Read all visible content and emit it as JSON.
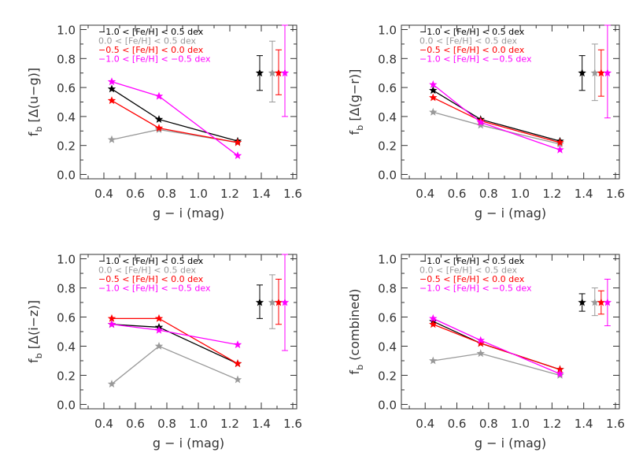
{
  "chart_data": [
    {
      "type": "line",
      "xlabel": "g − i (mag)",
      "ylabel": "f_b [Δ(u−g)]",
      "ylabel_main": "f",
      "ylabel_sub": "b",
      "ylabel_rest": " [Δ(u−g)]",
      "xlim": [
        0.25,
        1.625
      ],
      "ylim": [
        -0.03,
        1.03
      ],
      "xticks": [
        "0.4",
        "0.6",
        "0.8",
        "1.0",
        "1.2",
        "1.4",
        "1.6"
      ],
      "yticks": [
        "0.0",
        "0.2",
        "0.4",
        "0.6",
        "0.8",
        "1.0"
      ],
      "legend_placement": "top-left",
      "x": [
        0.45,
        0.75,
        1.25
      ],
      "series": [
        {
          "name": "−1.0 < [Fe/H] < 0.5 dex",
          "color": "#000000",
          "values": [
            0.59,
            0.38,
            0.23
          ],
          "err_x": 1.39,
          "err_y": 0.7,
          "err_range": [
            0.58,
            0.82
          ]
        },
        {
          "name": "0.0 < [Fe/H] < 0.5 dex",
          "color": "#999999",
          "values": [
            0.24,
            0.31,
            0.22
          ],
          "err_x": 1.47,
          "err_y": 0.7,
          "err_range": [
            0.5,
            0.92
          ]
        },
        {
          "name": "−0.5 < [Fe/H] < 0.0 dex",
          "color": "#ff0000",
          "values": [
            0.51,
            0.32,
            0.22
          ],
          "err_x": 1.51,
          "err_y": 0.7,
          "err_range": [
            0.55,
            0.86
          ]
        },
        {
          "name": "−1.0 < [Fe/H] < −0.5 dex",
          "color": "#ff00ff",
          "values": [
            0.64,
            0.54,
            0.13
          ],
          "err_x": 1.55,
          "err_y": 0.7,
          "err_range": [
            0.4,
            1.03
          ]
        }
      ]
    },
    {
      "type": "line",
      "xlabel": "g − i (mag)",
      "ylabel": "f_b [Δ(g−r)]",
      "ylabel_main": "f",
      "ylabel_sub": "b",
      "ylabel_rest": " [Δ(g−r)]",
      "xlim": [
        0.25,
        1.625
      ],
      "ylim": [
        -0.03,
        1.03
      ],
      "xticks": [
        "0.4",
        "0.6",
        "0.8",
        "1.0",
        "1.2",
        "1.4",
        "1.6"
      ],
      "yticks": [
        "0.0",
        "0.2",
        "0.4",
        "0.6",
        "0.8",
        "1.0"
      ],
      "legend_placement": "top-left",
      "x": [
        0.45,
        0.75,
        1.25
      ],
      "series": [
        {
          "name": "−1.0 < [Fe/H] < 0.5 dex",
          "color": "#000000",
          "values": [
            0.58,
            0.38,
            0.23
          ],
          "err_x": 1.39,
          "err_y": 0.7,
          "err_range": [
            0.58,
            0.82
          ]
        },
        {
          "name": "0.0 < [Fe/H] < 0.5 dex",
          "color": "#999999",
          "values": [
            0.43,
            0.34,
            0.21
          ],
          "err_x": 1.47,
          "err_y": 0.7,
          "err_range": [
            0.51,
            0.9
          ]
        },
        {
          "name": "−0.5 < [Fe/H] < 0.0 dex",
          "color": "#ff0000",
          "values": [
            0.53,
            0.37,
            0.22
          ],
          "err_x": 1.51,
          "err_y": 0.7,
          "err_range": [
            0.54,
            0.86
          ]
        },
        {
          "name": "−1.0 < [Fe/H] < −0.5 dex",
          "color": "#ff00ff",
          "values": [
            0.62,
            0.36,
            0.17
          ],
          "err_x": 1.55,
          "err_y": 0.7,
          "err_range": [
            0.39,
            1.03
          ]
        }
      ]
    },
    {
      "type": "line",
      "xlabel": "g − i (mag)",
      "ylabel": "f_b [Δ(i−z)]",
      "ylabel_main": "f",
      "ylabel_sub": "b",
      "ylabel_rest": " [Δ(i−z)]",
      "xlim": [
        0.25,
        1.625
      ],
      "ylim": [
        -0.03,
        1.03
      ],
      "xticks": [
        "0.4",
        "0.6",
        "0.8",
        "1.0",
        "1.2",
        "1.4",
        "1.6"
      ],
      "yticks": [
        "0.0",
        "0.2",
        "0.4",
        "0.6",
        "0.8",
        "1.0"
      ],
      "legend_placement": "top-left",
      "x": [
        0.45,
        0.75,
        1.25
      ],
      "series": [
        {
          "name": "−1.0 < [Fe/H] < 0.5 dex",
          "color": "#000000",
          "values": [
            0.55,
            0.53,
            0.28
          ],
          "err_x": 1.39,
          "err_y": 0.7,
          "err_range": [
            0.59,
            0.82
          ]
        },
        {
          "name": "0.0 < [Fe/H] < 0.5 dex",
          "color": "#999999",
          "values": [
            0.14,
            0.4,
            0.17
          ],
          "err_x": 1.47,
          "err_y": 0.7,
          "err_range": [
            0.52,
            0.89
          ]
        },
        {
          "name": "−0.5 < [Fe/H] < 0.0 dex",
          "color": "#ff0000",
          "values": [
            0.59,
            0.59,
            0.28
          ],
          "err_x": 1.51,
          "err_y": 0.7,
          "err_range": [
            0.55,
            0.86
          ]
        },
        {
          "name": "−1.0 < [Fe/H] < −0.5 dex",
          "color": "#ff00ff",
          "values": [
            0.55,
            0.51,
            0.41
          ],
          "err_x": 1.55,
          "err_y": 0.7,
          "err_range": [
            0.37,
            1.03
          ]
        }
      ]
    },
    {
      "type": "line",
      "xlabel": "g − i (mag)",
      "ylabel": "f_b (combined)",
      "ylabel_main": "f",
      "ylabel_sub": "b",
      "ylabel_rest": " (combined)",
      "xlim": [
        0.25,
        1.625
      ],
      "ylim": [
        -0.03,
        1.03
      ],
      "xticks": [
        "0.4",
        "0.6",
        "0.8",
        "1.0",
        "1.2",
        "1.4",
        "1.6"
      ],
      "yticks": [
        "0.0",
        "0.2",
        "0.4",
        "0.6",
        "0.8",
        "1.0"
      ],
      "legend_placement": "top-left",
      "x": [
        0.45,
        0.75,
        1.25
      ],
      "series": [
        {
          "name": "−1.0 < [Fe/H] < 0.5 dex",
          "color": "#000000",
          "values": [
            0.57,
            0.42,
            0.24
          ],
          "err_x": 1.39,
          "err_y": 0.7,
          "err_range": [
            0.64,
            0.76
          ]
        },
        {
          "name": "0.0 < [Fe/H] < 0.5 dex",
          "color": "#999999",
          "values": [
            0.3,
            0.35,
            0.2
          ],
          "err_x": 1.47,
          "err_y": 0.7,
          "err_range": [
            0.61,
            0.8
          ]
        },
        {
          "name": "−0.5 < [Fe/H] < 0.0 dex",
          "color": "#ff0000",
          "values": [
            0.55,
            0.42,
            0.24
          ],
          "err_x": 1.51,
          "err_y": 0.7,
          "err_range": [
            0.62,
            0.78
          ]
        },
        {
          "name": "−1.0 < [Fe/H] < −0.5 dex",
          "color": "#ff00ff",
          "values": [
            0.59,
            0.44,
            0.21
          ],
          "err_x": 1.55,
          "err_y": 0.7,
          "err_range": [
            0.54,
            0.86
          ]
        }
      ]
    }
  ]
}
